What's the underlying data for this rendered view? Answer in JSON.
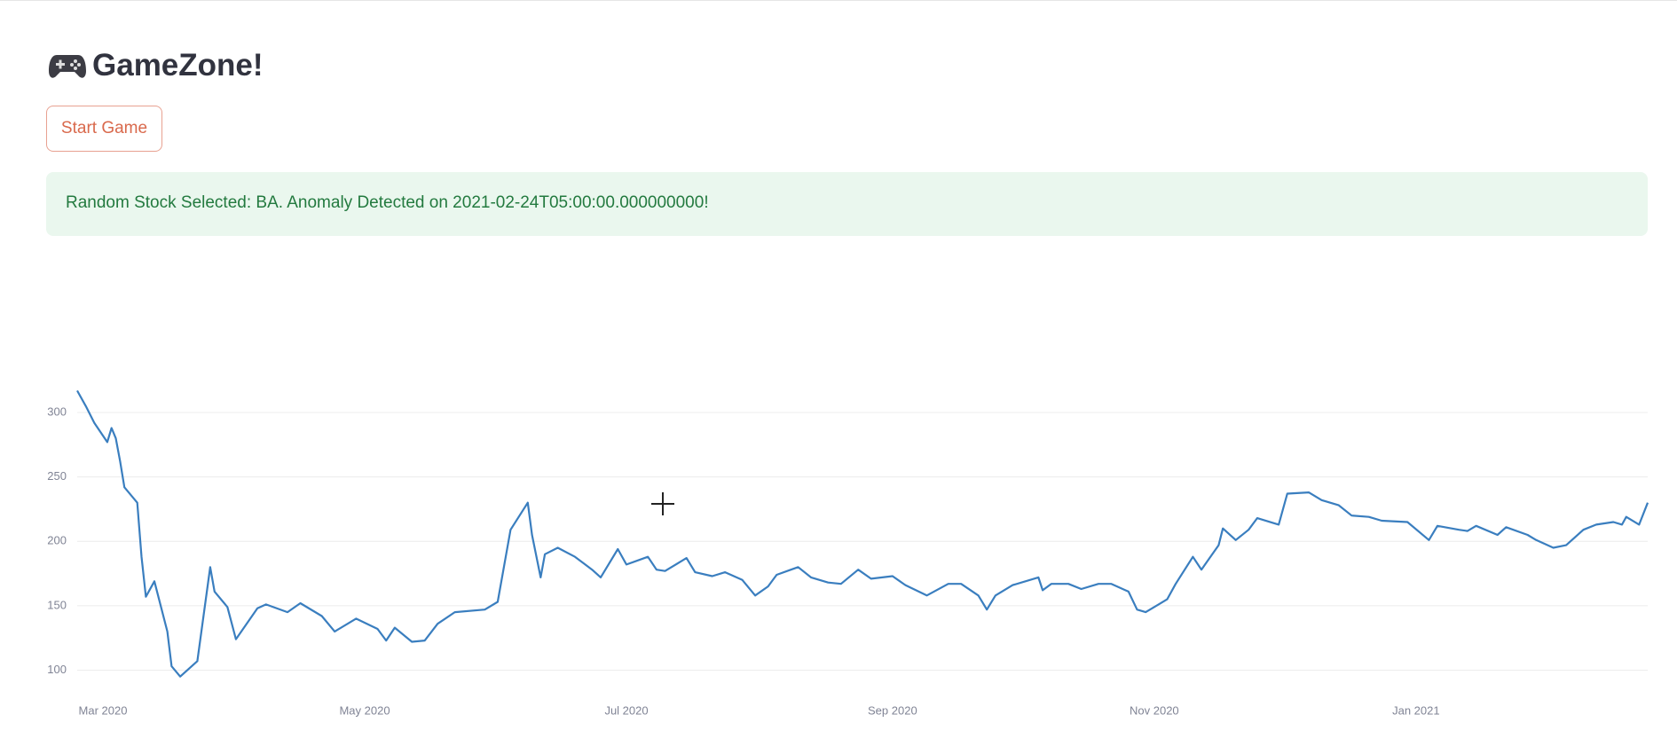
{
  "header": {
    "title": "GameZone!"
  },
  "button": {
    "label": "Start Game"
  },
  "alert": {
    "text": "Random Stock Selected: BA. Anomaly Detected on 2021-02-24T05:00:00.000000000!"
  },
  "chart_data": {
    "type": "line",
    "color": "#3a7ebf",
    "grid": true,
    "x": [
      "2020-02-24",
      "2020-02-26",
      "2020-02-28",
      "2020-03-02",
      "2020-03-03",
      "2020-03-04",
      "2020-03-05",
      "2020-03-06",
      "2020-03-09",
      "2020-03-10",
      "2020-03-11",
      "2020-03-13",
      "2020-03-16",
      "2020-03-17",
      "2020-03-19",
      "2020-03-23",
      "2020-03-26",
      "2020-03-27",
      "2020-03-30",
      "2020-04-01",
      "2020-04-06",
      "2020-04-08",
      "2020-04-13",
      "2020-04-16",
      "2020-04-21",
      "2020-04-24",
      "2020-04-29",
      "2020-05-04",
      "2020-05-06",
      "2020-05-08",
      "2020-05-12",
      "2020-05-15",
      "2020-05-18",
      "2020-05-22",
      "2020-05-29",
      "2020-06-01",
      "2020-06-04",
      "2020-06-08",
      "2020-06-09",
      "2020-06-11",
      "2020-06-12",
      "2020-06-15",
      "2020-06-19",
      "2020-06-23",
      "2020-06-25",
      "2020-06-29",
      "2020-07-01",
      "2020-07-06",
      "2020-07-08",
      "2020-07-10",
      "2020-07-15",
      "2020-07-17",
      "2020-07-21",
      "2020-07-24",
      "2020-07-28",
      "2020-07-31",
      "2020-08-03",
      "2020-08-05",
      "2020-08-10",
      "2020-08-13",
      "2020-08-17",
      "2020-08-20",
      "2020-08-24",
      "2020-08-27",
      "2020-09-01",
      "2020-09-04",
      "2020-09-09",
      "2020-09-14",
      "2020-09-17",
      "2020-09-21",
      "2020-09-23",
      "2020-09-25",
      "2020-09-29",
      "2020-10-05",
      "2020-10-06",
      "2020-10-08",
      "2020-10-12",
      "2020-10-15",
      "2020-10-19",
      "2020-10-22",
      "2020-10-26",
      "2020-10-28",
      "2020-10-30",
      "2020-11-02",
      "2020-11-04",
      "2020-11-06",
      "2020-11-10",
      "2020-11-12",
      "2020-11-16",
      "2020-11-17",
      "2020-11-20",
      "2020-11-23",
      "2020-11-25",
      "2020-11-30",
      "2020-12-02",
      "2020-12-07",
      "2020-12-10",
      "2020-12-14",
      "2020-12-17",
      "2020-12-21",
      "2020-12-24",
      "2020-12-30",
      "2021-01-04",
      "2021-01-06",
      "2021-01-11",
      "2021-01-13",
      "2021-01-15",
      "2021-01-20",
      "2021-01-22",
      "2021-01-27",
      "2021-01-29",
      "2021-02-02",
      "2021-02-05",
      "2021-02-09",
      "2021-02-12",
      "2021-02-16",
      "2021-02-18",
      "2021-02-19",
      "2021-02-22",
      "2021-02-24"
    ],
    "values": [
      317,
      305,
      292,
      277,
      288,
      280,
      262,
      242,
      230,
      188,
      157,
      169,
      130,
      103,
      95,
      107,
      180,
      161,
      149,
      124,
      148,
      151,
      145,
      152,
      142,
      130,
      140,
      132,
      123,
      133,
      122,
      123,
      136,
      145,
      147,
      153,
      209,
      230,
      205,
      172,
      190,
      195,
      188,
      178,
      172,
      194,
      182,
      188,
      178,
      177,
      187,
      176,
      173,
      176,
      170,
      158,
      165,
      174,
      180,
      172,
      168,
      167,
      178,
      171,
      173,
      166,
      158,
      167,
      167,
      158,
      147,
      158,
      166,
      172,
      162,
      167,
      167,
      163,
      167,
      167,
      161,
      147,
      145,
      151,
      155,
      167,
      188,
      178,
      197,
      210,
      201,
      209,
      218,
      213,
      237,
      238,
      232,
      228,
      220,
      219,
      216,
      215,
      201,
      212,
      209,
      208,
      212,
      205,
      211,
      205,
      201,
      195,
      197,
      209,
      213,
      215,
      213,
      219,
      213,
      230
    ],
    "xlim": [
      "2020-02-24",
      "2021-02-24"
    ],
    "xticks": [
      {
        "value": "2020-03",
        "label": "Mar 2020"
      },
      {
        "value": "2020-05",
        "label": "May 2020"
      },
      {
        "value": "2020-07",
        "label": "Jul 2020"
      },
      {
        "value": "2020-09",
        "label": "Sep 2020"
      },
      {
        "value": "2020-11",
        "label": "Nov 2020"
      },
      {
        "value": "2021-01",
        "label": "Jan 2021"
      }
    ],
    "ylim": [
      90,
      320
    ],
    "yticks": [
      100,
      150,
      200,
      250,
      300
    ]
  }
}
